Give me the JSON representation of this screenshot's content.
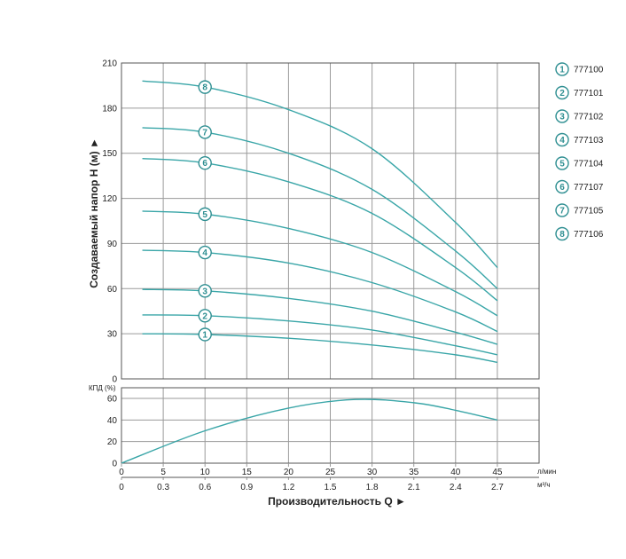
{
  "colors": {
    "curve": "#3aa6a8",
    "marker_stroke": "#2f8f92",
    "marker_text": "#2f8f92",
    "grid": "#9a9a9a"
  },
  "chart_data": [
    {
      "type": "line",
      "ylabel": "Создаваемый напор Н (м) ►",
      "ylim": [
        0,
        210
      ],
      "y_ticks": [
        "210",
        "180",
        "150",
        "120",
        "90",
        "60",
        "30",
        "0"
      ],
      "grid": true,
      "legend_position": "right",
      "series": [
        {
          "marker": "1",
          "name": "777100",
          "x": [
            2.5,
            10,
            20,
            30,
            40,
            45
          ],
          "y": [
            30,
            29.5,
            27,
            22.5,
            16,
            11
          ]
        },
        {
          "marker": "2",
          "name": "777101",
          "x": [
            2.5,
            10,
            20,
            30,
            40,
            45
          ],
          "y": [
            42.5,
            42,
            38.5,
            32.5,
            22,
            16
          ]
        },
        {
          "marker": "3",
          "name": "777102",
          "x": [
            2.5,
            10,
            20,
            30,
            40,
            45
          ],
          "y": [
            59.5,
            58.5,
            53.5,
            45,
            31,
            23
          ]
        },
        {
          "marker": "4",
          "name": "777103",
          "x": [
            2.5,
            10,
            20,
            30,
            40,
            45
          ],
          "y": [
            85.5,
            84,
            77,
            64,
            44.5,
            31.5
          ]
        },
        {
          "marker": "5",
          "name": "777104",
          "x": [
            2.5,
            10,
            20,
            30,
            40,
            45
          ],
          "y": [
            111.5,
            109.5,
            100,
            84,
            58,
            42
          ]
        },
        {
          "marker": "6",
          "name": "777107",
          "x": [
            2.5,
            10,
            20,
            30,
            40,
            45
          ],
          "y": [
            146.5,
            143.5,
            131,
            110,
            74,
            52
          ]
        },
        {
          "marker": "7",
          "name": "777105",
          "x": [
            2.5,
            10,
            20,
            30,
            40,
            45
          ],
          "y": [
            167,
            164,
            150,
            126,
            85,
            60
          ]
        },
        {
          "marker": "8",
          "name": "777106",
          "x": [
            2.5,
            10,
            20,
            30,
            40,
            45
          ],
          "y": [
            198,
            194,
            179,
            153,
            104,
            74
          ]
        }
      ],
      "marker_x": 10
    },
    {
      "type": "line",
      "ylabel": "КПД (%)",
      "ylim": [
        0,
        60
      ],
      "y_ticks": [
        "60",
        "40",
        "20",
        "0"
      ],
      "grid": true,
      "series": [
        {
          "x": [
            0,
            10,
            20,
            28,
            35,
            40,
            45
          ],
          "y": [
            0,
            30,
            51,
            59,
            56,
            49,
            40
          ]
        }
      ]
    }
  ],
  "x_axis_lpm": {
    "ticks": [
      "0",
      "5",
      "10",
      "15",
      "20",
      "25",
      "30",
      "35",
      "40",
      "45"
    ],
    "unit": "л/мин"
  },
  "x_axis_m3h": {
    "ticks": [
      "0",
      "0.3",
      "0.6",
      "0.9",
      "1.2",
      "1.5",
      "1.8",
      "2.1",
      "2.4",
      "2.7"
    ],
    "unit": "м³/ч"
  },
  "xlabel": "Производительность Q ►"
}
